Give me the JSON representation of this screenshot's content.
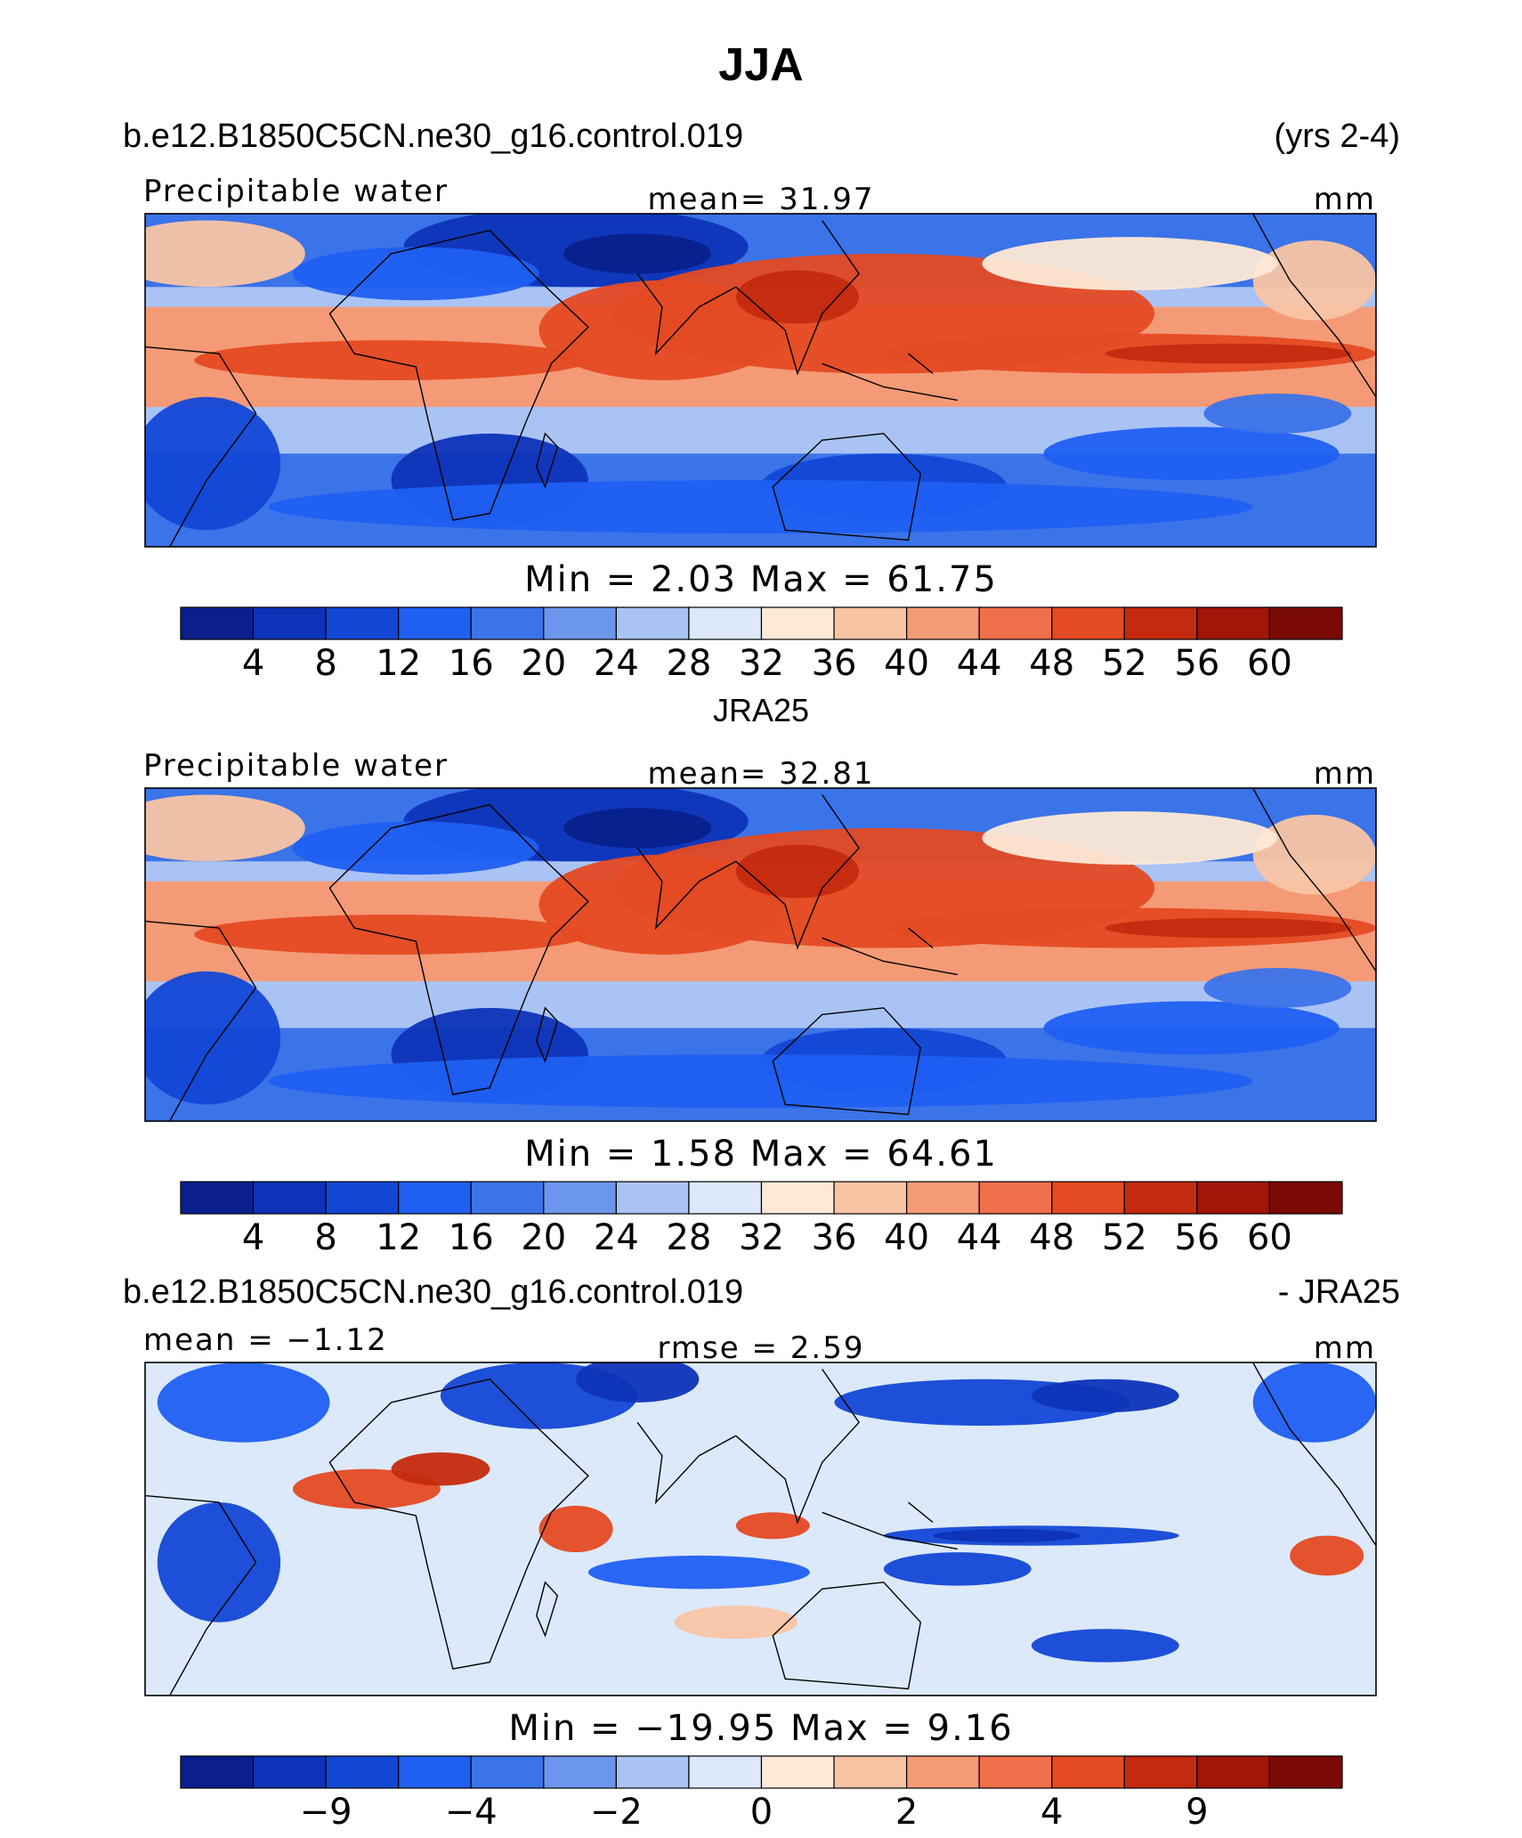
{
  "figure": {
    "title": "JJA",
    "case_name": "b.e12.B1850C5CN.ne30_g16.control.019",
    "years": "(yrs 2-4)",
    "obs_name": "JRA25",
    "diff_suffix": "- JRA25"
  },
  "chart_data": [
    {
      "type": "heatmap",
      "title": "Precipitable water",
      "center_label": "mean=   31.97",
      "units": "mm",
      "stats": "Min  =      2.03  Max  =    61.75",
      "colorbar": {
        "labels": [
          "4",
          "8",
          "12",
          "16",
          "20",
          "24",
          "28",
          "32",
          "36",
          "40",
          "44",
          "48",
          "52",
          "56",
          "60"
        ],
        "colors": [
          "#0a1f8c",
          "#0d34b8",
          "#1247d6",
          "#1f5ff2",
          "#3b73e8",
          "#6c96ec",
          "#aac3f5",
          "#dce9fb",
          "#fde9d6",
          "#f9c4a4",
          "#f59a76",
          "#f0704a",
          "#e44a23",
          "#c42a0e",
          "#a01607",
          "#7a0a03"
        ]
      },
      "grid": false
    },
    {
      "type": "heatmap",
      "title": "Precipitable water",
      "center_label": "mean=   32.81",
      "units": "mm",
      "stats": "Min  =      1.58  Max  =    64.61",
      "colorbar": {
        "labels": [
          "4",
          "8",
          "12",
          "16",
          "20",
          "24",
          "28",
          "32",
          "36",
          "40",
          "44",
          "48",
          "52",
          "56",
          "60"
        ],
        "colors": [
          "#0a1f8c",
          "#0d34b8",
          "#1247d6",
          "#1f5ff2",
          "#3b73e8",
          "#6c96ec",
          "#aac3f5",
          "#dce9fb",
          "#fde9d6",
          "#f9c4a4",
          "#f59a76",
          "#f0704a",
          "#e44a23",
          "#c42a0e",
          "#a01607",
          "#7a0a03"
        ]
      },
      "grid": false
    },
    {
      "type": "heatmap",
      "title": "mean =   −1.12",
      "center_label": "rmse  =      2.59",
      "units": "mm",
      "stats": "Min  =  −19.95  Max  =      9.16",
      "colorbar": {
        "labels": [
          "",
          "−9",
          "",
          "−4",
          "",
          "−2",
          "",
          "0",
          "",
          "2",
          "",
          "4",
          "",
          "9",
          ""
        ],
        "colors": [
          "#0a1f8c",
          "#0d34b8",
          "#1247d6",
          "#1f5ff2",
          "#3b73e8",
          "#6c96ec",
          "#aac3f5",
          "#dce9fb",
          "#fde9d6",
          "#f9c4a4",
          "#f59a76",
          "#f0704a",
          "#e44a23",
          "#c42a0e",
          "#a01607",
          "#7a0a03"
        ]
      },
      "grid": false
    }
  ]
}
